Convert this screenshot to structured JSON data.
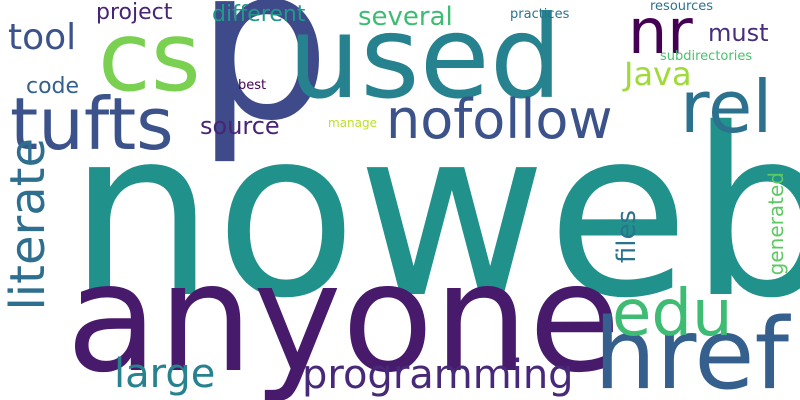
{
  "words": [
    {
      "text": "noweb",
      "color": "#21918c"
    },
    {
      "text": "anyone",
      "color": "#481a6c"
    },
    {
      "text": "p",
      "color": "#3e4a89"
    },
    {
      "text": "used",
      "color": "#26828e"
    },
    {
      "text": "cs",
      "color": "#7ad151"
    },
    {
      "text": "tufts",
      "color": "#3b528b"
    },
    {
      "text": "href",
      "color": "#355f8d"
    },
    {
      "text": "nofollow",
      "color": "#3b528b"
    },
    {
      "text": "rel",
      "color": "#2c728e"
    },
    {
      "text": "nr",
      "color": "#440154"
    },
    {
      "text": "edu",
      "color": "#3fbc73"
    },
    {
      "text": "literate",
      "color": "#2e6e8e"
    },
    {
      "text": "programming",
      "color": "#482878"
    },
    {
      "text": "large",
      "color": "#26828e"
    },
    {
      "text": "Java",
      "color": "#a0da39"
    },
    {
      "text": "tool",
      "color": "#3b528b"
    },
    {
      "text": "project",
      "color": "#482475"
    },
    {
      "text": "different",
      "color": "#1f9a8a"
    },
    {
      "text": "several",
      "color": "#3fbc73"
    },
    {
      "text": "must",
      "color": "#472d7b"
    },
    {
      "text": "source",
      "color": "#482475"
    },
    {
      "text": "code",
      "color": "#355f8d"
    },
    {
      "text": "files",
      "color": "#2c728e"
    },
    {
      "text": "generated",
      "color": "#5ec962"
    },
    {
      "text": "resources",
      "color": "#2c728e"
    },
    {
      "text": "practices",
      "color": "#2c728e"
    },
    {
      "text": "subdirectories",
      "color": "#4ac16d"
    },
    {
      "text": "best",
      "color": "#440154"
    },
    {
      "text": "manage",
      "color": "#bddf26"
    }
  ]
}
